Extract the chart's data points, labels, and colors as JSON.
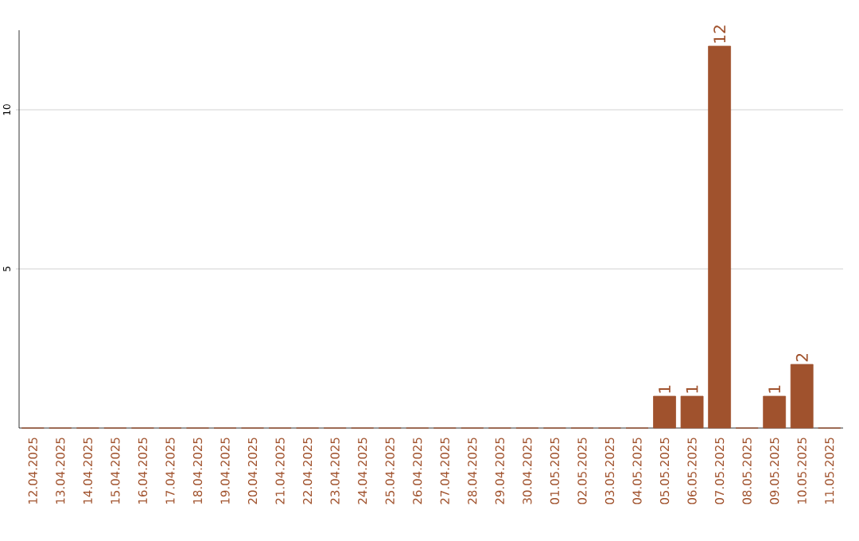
{
  "chart_data": {
    "type": "bar",
    "categories": [
      "12.04.2025",
      "13.04.2025",
      "14.04.2025",
      "15.04.2025",
      "16.04.2025",
      "17.04.2025",
      "18.04.2025",
      "19.04.2025",
      "20.04.2025",
      "21.04.2025",
      "22.04.2025",
      "23.04.2025",
      "24.04.2025",
      "25.04.2025",
      "26.04.2025",
      "27.04.2025",
      "28.04.2025",
      "29.04.2025",
      "30.04.2025",
      "01.05.2025",
      "02.05.2025",
      "03.05.2025",
      "04.05.2025",
      "05.05.2025",
      "06.05.2025",
      "07.05.2025",
      "08.05.2025",
      "09.05.2025",
      "10.05.2025",
      "11.05.2025"
    ],
    "values": [
      0,
      0,
      0,
      0,
      0,
      0,
      0,
      0,
      0,
      0,
      0,
      0,
      0,
      0,
      0,
      0,
      0,
      0,
      0,
      0,
      0,
      0,
      0,
      1,
      1,
      12,
      0,
      1,
      2,
      0
    ],
    "value_labels": [
      null,
      null,
      null,
      null,
      null,
      null,
      null,
      null,
      null,
      null,
      null,
      null,
      null,
      null,
      null,
      null,
      null,
      null,
      null,
      null,
      null,
      null,
      null,
      "1",
      "1",
      "12",
      null,
      "1",
      "2",
      null
    ],
    "color": "#a0522d",
    "ylim": [
      0,
      12.5
    ],
    "yticks": [
      5,
      10
    ],
    "grid": "y"
  }
}
